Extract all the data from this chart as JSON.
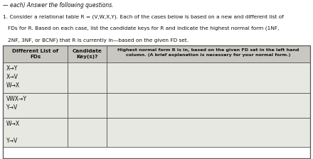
{
  "title_line1": "— each) Answer the following questions.",
  "question": "1. Consider a relational table R = (V,W,X,Y). Each of the cases below is based on a new and different list of",
  "question2": "FDs for R. Based on each case, list the candidate keys for R and indicate the highest normal form (1NF,",
  "question3": "2NF, 3NF, or BCNF) that R is currently in—based on the given FD set.",
  "col1_header": "Different List of\nFDs",
  "col2_header": "Candidate\nKey(s)?",
  "col3_header": "Highest normal form R is in, based on the given FD set in the left hand\ncolumn. (A brief explanation is necessary for your normal form.)",
  "rows": [
    {
      "fd": "X→Y\nX→V\nW→X",
      "candidate": "",
      "highest": ""
    },
    {
      "fd": "VWX→Y\nY→V",
      "candidate": "",
      "highest": ""
    },
    {
      "fd": "W→X\n\nY→V",
      "candidate": "",
      "highest": ""
    }
  ],
  "header_bg": "#c8c8c0",
  "row_bg": "#e8e8e2",
  "text_color": "#111111",
  "border_color": "#555555",
  "fig_width": 4.4,
  "fig_height": 2.24,
  "dpi": 100
}
